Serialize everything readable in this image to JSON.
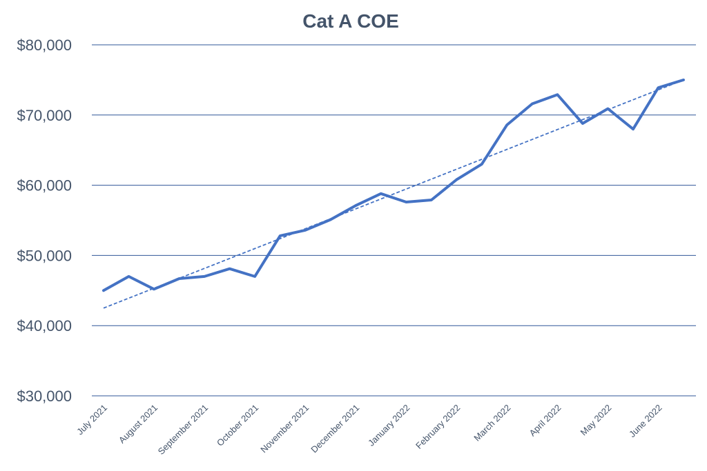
{
  "chart_data": {
    "type": "line",
    "title": "Cat A COE",
    "xlabel": "",
    "ylabel": "",
    "ylim": [
      30000,
      80000
    ],
    "yticks": [
      30000,
      40000,
      50000,
      60000,
      70000,
      80000
    ],
    "ytick_labels": [
      "$30,000",
      "$40,000",
      "$50,000",
      "$60,000",
      "$70,000",
      "$80,000"
    ],
    "x_tick_labels": [
      "July 2021",
      "August 2021",
      "September 2021",
      "October 2021",
      "November 2021",
      "December 2021",
      "January 2022",
      "February 2022",
      "March 2022",
      "April 2022",
      "May 2022",
      "June 2022"
    ],
    "series": [
      {
        "values": [
          45000,
          47000,
          45200,
          46700,
          47000,
          48100,
          47000,
          52800,
          53600,
          55100,
          57100,
          58800,
          57600,
          57900,
          60800,
          63000,
          68600,
          71600,
          72900,
          68800,
          70900,
          68000,
          73900,
          75000
        ]
      }
    ],
    "trendline": {
      "type": "linear",
      "style": "dashed",
      "start": 42500,
      "end": 75000
    },
    "grid": true,
    "legend": "none",
    "colors": {
      "line": "#4472c4",
      "grid": "#2f5597",
      "text": "#44546a"
    }
  }
}
